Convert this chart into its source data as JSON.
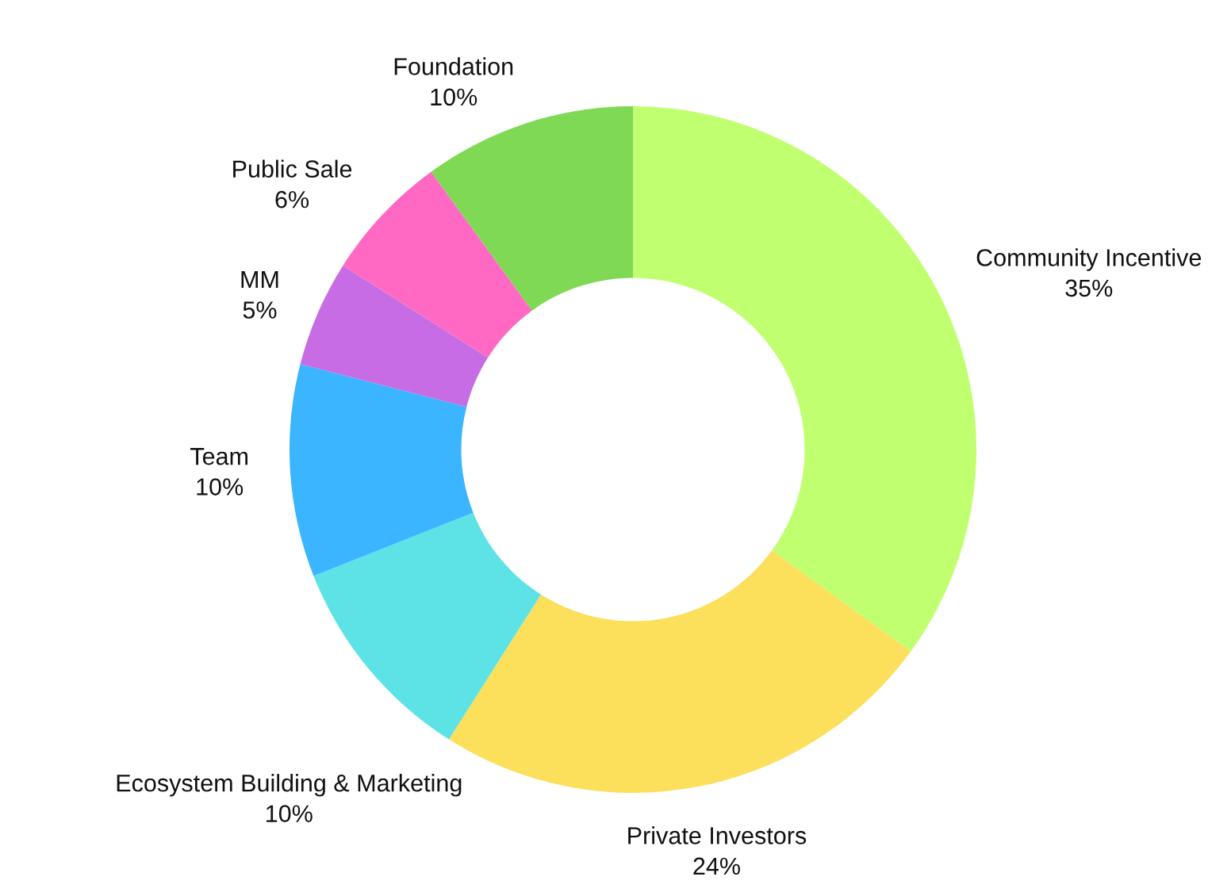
{
  "chart_data": {
    "type": "donut",
    "categories": [
      "Community Incentive",
      "Private Investors",
      "Ecosystem Building & Marketing",
      "Team",
      "MM",
      "Public Sale",
      "Foundation"
    ],
    "values": [
      35,
      24,
      10,
      10,
      5,
      6,
      10
    ],
    "value_labels": [
      "35%",
      "24%",
      "10%",
      "10%",
      "5%",
      "6%",
      "10%"
    ],
    "colors": [
      "#c0ff70",
      "#fcdf5b",
      "#5de2e6",
      "#3bb5ff",
      "#c76ce4",
      "#ff69c3",
      "#80d955"
    ],
    "legend": false
  }
}
